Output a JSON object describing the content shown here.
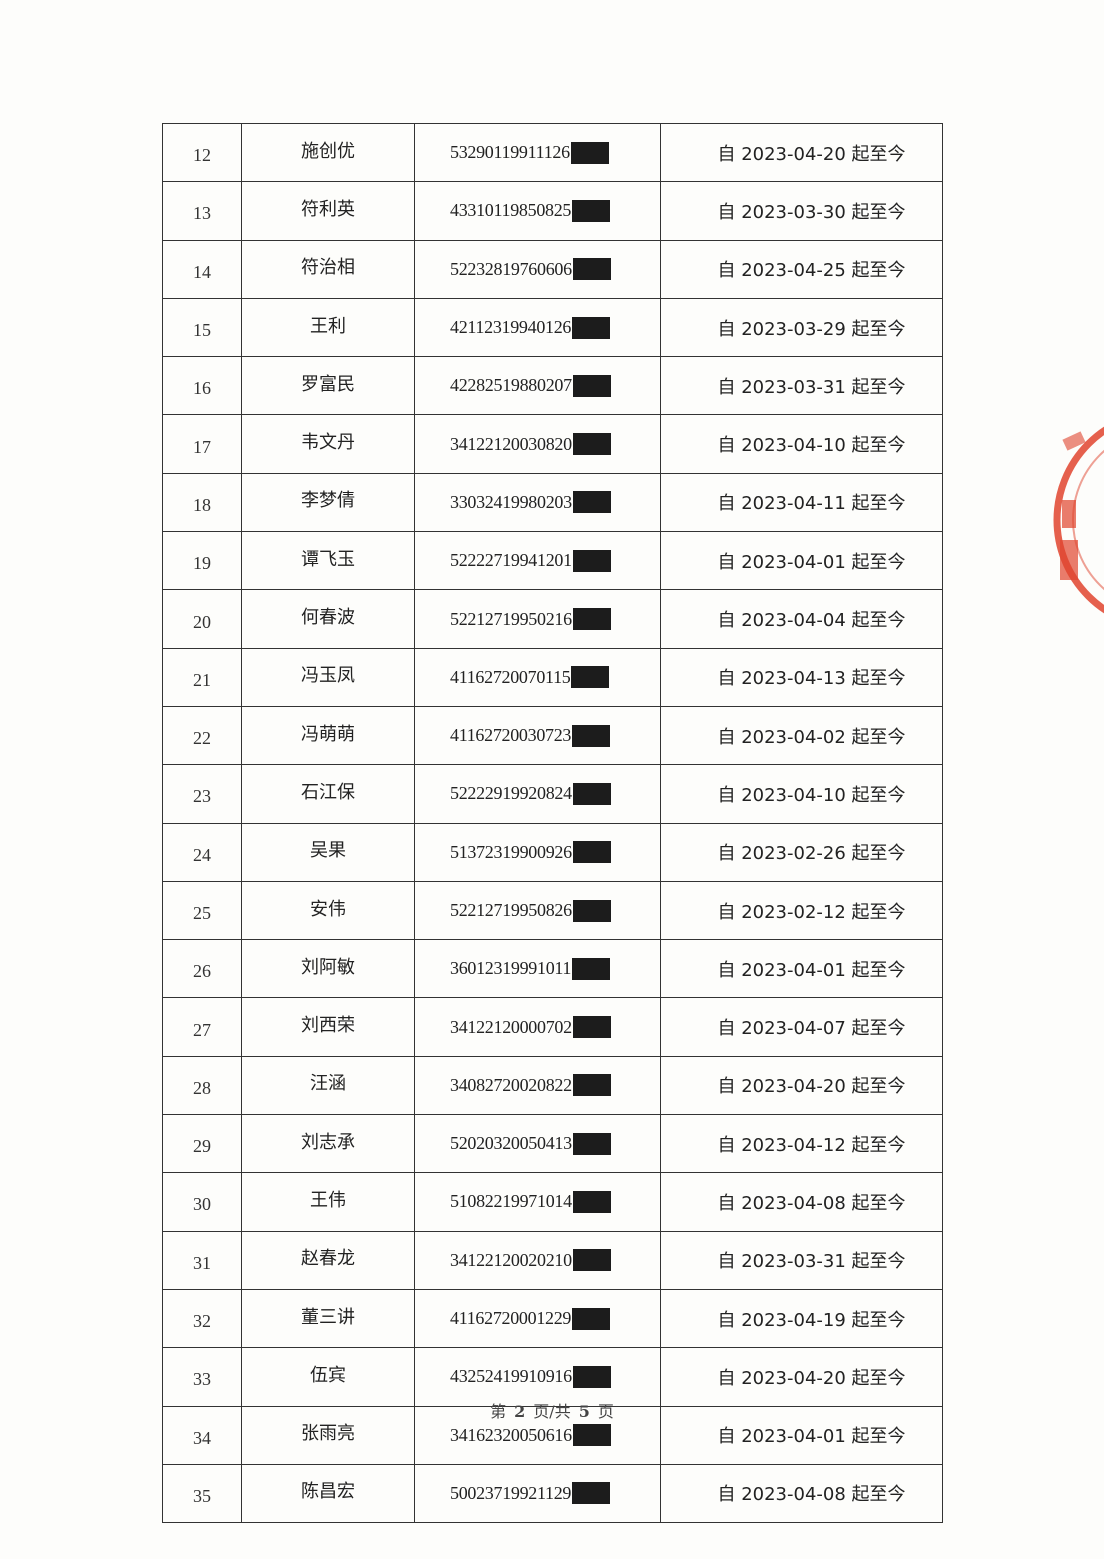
{
  "table": {
    "rows": [
      {
        "no": "12",
        "name": "施创优",
        "id": "53290119911126",
        "period": "自 2023-04-20 起至今"
      },
      {
        "no": "13",
        "name": "符利英",
        "id": "43310119850825",
        "period": "自 2023-03-30 起至今"
      },
      {
        "no": "14",
        "name": "符治相",
        "id": "52232819760606",
        "period": "自 2023-04-25 起至今"
      },
      {
        "no": "15",
        "name": "王利",
        "id": "42112319940126",
        "period": "自 2023-03-29 起至今"
      },
      {
        "no": "16",
        "name": "罗富民",
        "id": "42282519880207",
        "period": "自 2023-03-31 起至今"
      },
      {
        "no": "17",
        "name": "韦文丹",
        "id": "34122120030820",
        "period": "自 2023-04-10 起至今"
      },
      {
        "no": "18",
        "name": "李梦倩",
        "id": "33032419980203",
        "period": "自 2023-04-11 起至今"
      },
      {
        "no": "19",
        "name": "谭飞玉",
        "id": "52222719941201",
        "period": "自 2023-04-01 起至今"
      },
      {
        "no": "20",
        "name": "何春波",
        "id": "52212719950216",
        "period": "自 2023-04-04 起至今"
      },
      {
        "no": "21",
        "name": "冯玉凤",
        "id": "41162720070115",
        "period": "自 2023-04-13 起至今"
      },
      {
        "no": "22",
        "name": "冯萌萌",
        "id": "41162720030723",
        "period": "自 2023-04-02 起至今"
      },
      {
        "no": "23",
        "name": "石江保",
        "id": "52222919920824",
        "period": "自 2023-04-10 起至今"
      },
      {
        "no": "24",
        "name": "吴果",
        "id": "51372319900926",
        "period": "自 2023-02-26 起至今"
      },
      {
        "no": "25",
        "name": "安伟",
        "id": "52212719950826",
        "period": "自 2023-02-12 起至今"
      },
      {
        "no": "26",
        "name": "刘阿敏",
        "id": "36012319991011",
        "period": "自 2023-04-01 起至今"
      },
      {
        "no": "27",
        "name": "刘西荣",
        "id": "34122120000702",
        "period": "自 2023-04-07 起至今"
      },
      {
        "no": "28",
        "name": "汪涵",
        "id": "34082720020822",
        "period": "自 2023-04-20 起至今"
      },
      {
        "no": "29",
        "name": "刘志承",
        "id": "52020320050413",
        "period": "自 2023-04-12 起至今"
      },
      {
        "no": "30",
        "name": "王伟",
        "id": "51082219971014",
        "period": "自 2023-04-08 起至今"
      },
      {
        "no": "31",
        "name": "赵春龙",
        "id": "34122120020210",
        "period": "自 2023-03-31 起至今"
      },
      {
        "no": "32",
        "name": "董三讲",
        "id": "41162720001229",
        "period": "自 2023-04-19 起至今"
      },
      {
        "no": "33",
        "name": "伍宾",
        "id": "43252419910916",
        "period": "自 2023-04-20 起至今"
      },
      {
        "no": "34",
        "name": "张雨亮",
        "id": "34162320050616",
        "period": "自 2023-04-01 起至今"
      },
      {
        "no": "35",
        "name": "陈昌宏",
        "id": "50023719921129",
        "period": "自 2023-04-08 起至今"
      }
    ]
  },
  "footer": {
    "prefix": "第",
    "page": "2",
    "mid": "页/共",
    "total": "5",
    "suffix": "页"
  },
  "stamp": {
    "color": "#e0442e"
  }
}
